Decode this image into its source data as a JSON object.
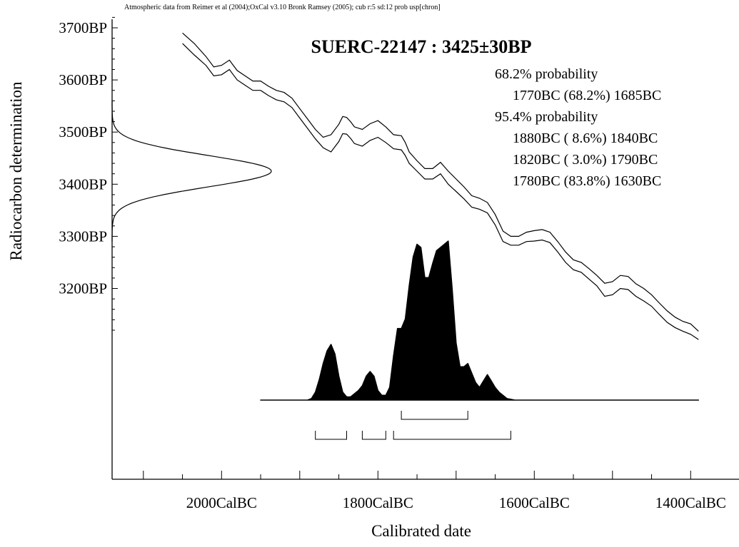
{
  "credit": "Atmospheric data from Reimer et al (2004);OxCal v3.10 Bronk Ramsey (2005); cub r:5 sd:12 prob usp[chron]",
  "colors": {
    "ink": "#000000",
    "background": "#ffffff"
  },
  "chart_data": {
    "type": "area",
    "title": "SUERC-22147 : 3425±30BP",
    "xlabel": "Calibrated date",
    "ylabel": "Radiocarbon determination",
    "xlim": [
      2140,
      1370
    ],
    "ylim": [
      3010,
      3720
    ],
    "x_reversed": true,
    "x_unit": "CalBC",
    "y_unit": "BP",
    "x_ticks": [
      {
        "value": 2000,
        "label": "2000CalBC"
      },
      {
        "value": 1800,
        "label": "1800CalBC"
      },
      {
        "value": 1600,
        "label": "1600CalBC"
      },
      {
        "value": 1400,
        "label": "1400CalBC"
      }
    ],
    "y_ticks": [
      {
        "value": 3700,
        "label": "3700BP"
      },
      {
        "value": 3600,
        "label": "3600BP"
      },
      {
        "value": 3500,
        "label": "3500BP"
      },
      {
        "value": 3400,
        "label": "3400BP"
      },
      {
        "value": 3300,
        "label": "3300BP"
      },
      {
        "value": 3200,
        "label": "3200BP"
      }
    ],
    "probability_ranges": [
      {
        "heading": "68.2% probability",
        "ranges": [
          {
            "label": "1770BC (68.2%) 1685BC",
            "from": 1770,
            "to": 1685,
            "percent": 68.2
          }
        ]
      },
      {
        "heading": "95.4% probability",
        "ranges": [
          {
            "label": "1880BC ( 8.6%) 1840BC",
            "from": 1880,
            "to": 1840,
            "percent": 8.6
          },
          {
            "label": "1820BC ( 3.0%) 1790BC",
            "from": 1820,
            "to": 1790,
            "percent": 3.0
          },
          {
            "label": "1780BC (83.8%) 1630BC",
            "from": 1780,
            "to": 1630,
            "percent": 83.8
          }
        ]
      }
    ],
    "measurement": {
      "mean_bp": 3425,
      "sigma_bp": 30
    },
    "calibration_curve": {
      "x": [
        2050,
        2035,
        2020,
        2010,
        2000,
        1990,
        1985,
        1980,
        1970,
        1960,
        1950,
        1940,
        1930,
        1920,
        1910,
        1900,
        1890,
        1880,
        1870,
        1860,
        1850,
        1845,
        1840,
        1835,
        1830,
        1820,
        1810,
        1800,
        1790,
        1780,
        1770,
        1765,
        1760,
        1750,
        1740,
        1730,
        1720,
        1710,
        1700,
        1690,
        1680,
        1670,
        1660,
        1650,
        1640,
        1630,
        1620,
        1610,
        1600,
        1590,
        1580,
        1570,
        1560,
        1550,
        1540,
        1530,
        1520,
        1510,
        1500,
        1490,
        1480,
        1470,
        1460,
        1450,
        1440,
        1430,
        1420,
        1410,
        1400,
        1390
      ],
      "upper": [
        3690,
        3670,
        3645,
        3625,
        3628,
        3638,
        3628,
        3618,
        3608,
        3598,
        3598,
        3588,
        3580,
        3576,
        3565,
        3545,
        3525,
        3505,
        3490,
        3495,
        3515,
        3530,
        3528,
        3520,
        3510,
        3505,
        3516,
        3522,
        3510,
        3495,
        3493,
        3480,
        3462,
        3445,
        3430,
        3430,
        3442,
        3425,
        3410,
        3395,
        3378,
        3373,
        3365,
        3342,
        3310,
        3300,
        3300,
        3308,
        3311,
        3313,
        3308,
        3290,
        3270,
        3255,
        3250,
        3238,
        3225,
        3210,
        3213,
        3225,
        3223,
        3209,
        3200,
        3188,
        3172,
        3157,
        3145,
        3137,
        3132,
        3118
      ],
      "lower": [
        3670,
        3648,
        3628,
        3608,
        3610,
        3620,
        3610,
        3600,
        3590,
        3580,
        3580,
        3570,
        3562,
        3558,
        3547,
        3527,
        3507,
        3487,
        3470,
        3462,
        3482,
        3497,
        3496,
        3488,
        3478,
        3473,
        3484,
        3490,
        3480,
        3468,
        3466,
        3455,
        3440,
        3425,
        3410,
        3410,
        3420,
        3400,
        3386,
        3372,
        3356,
        3352,
        3345,
        3322,
        3290,
        3283,
        3283,
        3290,
        3291,
        3293,
        3288,
        3270,
        3250,
        3236,
        3231,
        3218,
        3205,
        3185,
        3188,
        3200,
        3198,
        3185,
        3176,
        3166,
        3150,
        3135,
        3125,
        3118,
        3112,
        3102
      ]
    },
    "calibrated_distribution": {
      "x": [
        1950,
        1900,
        1890,
        1885,
        1880,
        1875,
        1870,
        1865,
        1860,
        1855,
        1850,
        1845,
        1840,
        1835,
        1830,
        1825,
        1820,
        1815,
        1810,
        1805,
        1800,
        1795,
        1790,
        1785,
        1780,
        1775,
        1770,
        1765,
        1760,
        1755,
        1750,
        1745,
        1740,
        1735,
        1730,
        1725,
        1720,
        1715,
        1710,
        1705,
        1700,
        1695,
        1690,
        1685,
        1680,
        1675,
        1670,
        1665,
        1660,
        1655,
        1650,
        1645,
        1640,
        1635,
        1630,
        1625,
        1620,
        1600,
        1520,
        1465,
        1390
      ],
      "y": [
        0,
        0,
        0,
        0.01,
        0.05,
        0.13,
        0.23,
        0.31,
        0.35,
        0.29,
        0.15,
        0.05,
        0.02,
        0.02,
        0.04,
        0.06,
        0.09,
        0.15,
        0.18,
        0.15,
        0.06,
        0.03,
        0.03,
        0.08,
        0.28,
        0.45,
        0.45,
        0.51,
        0.72,
        0.9,
        0.98,
        0.96,
        0.77,
        0.77,
        0.86,
        0.94,
        0.96,
        0.98,
        1.0,
        0.7,
        0.36,
        0.21,
        0.21,
        0.23,
        0.17,
        0.11,
        0.08,
        0.12,
        0.16,
        0.12,
        0.08,
        0.05,
        0.03,
        0.01,
        0.005,
        0,
        0,
        0,
        0,
        0,
        0
      ]
    }
  }
}
